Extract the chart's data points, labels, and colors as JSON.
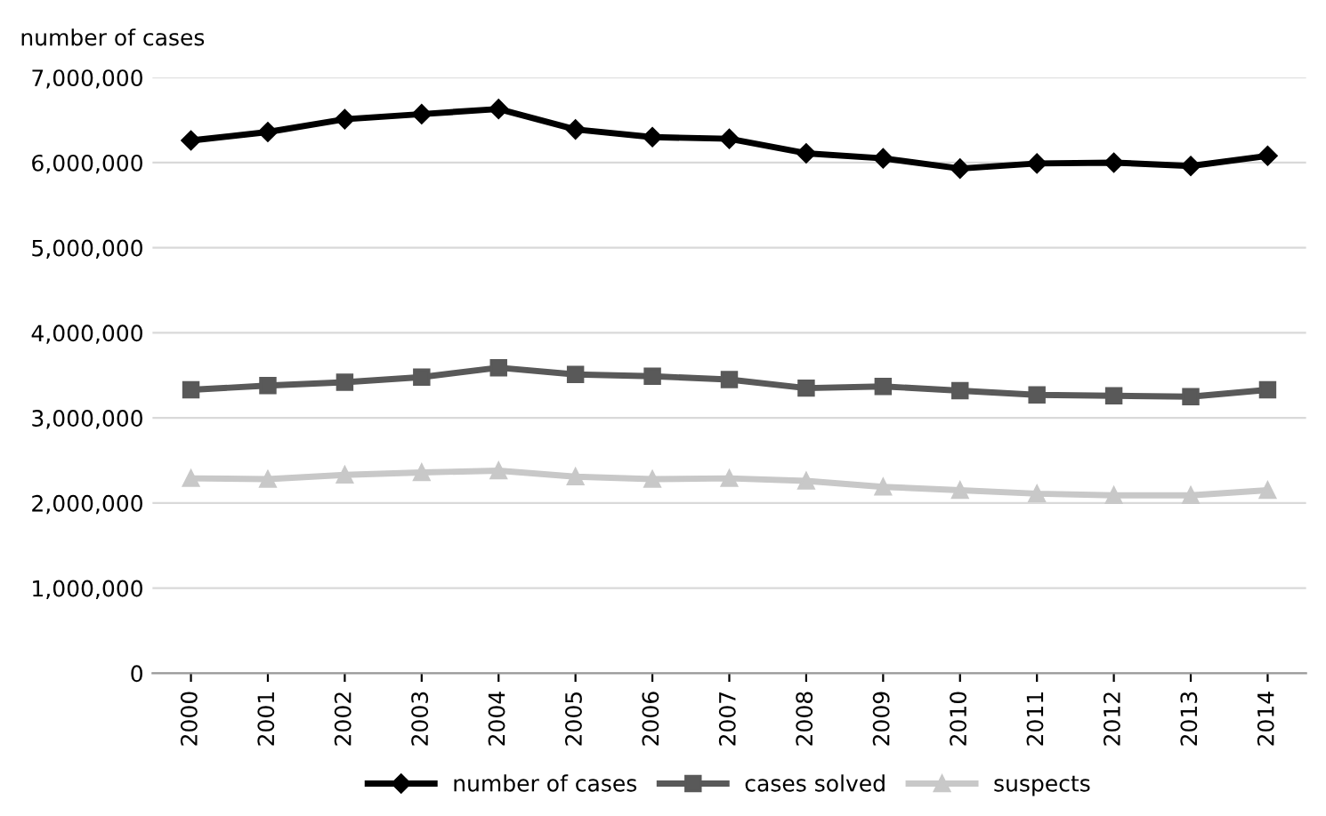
{
  "chart_data": {
    "type": "line",
    "ylabel": "number of cases",
    "categories": [
      "2000",
      "2001",
      "2002",
      "2003",
      "2004",
      "2005",
      "2006",
      "2007",
      "2008",
      "2009",
      "2010",
      "2011",
      "2012",
      "2013",
      "2014"
    ],
    "series": [
      {
        "name": "number of cases",
        "color": "#000000",
        "marker": "diamond",
        "values": [
          6260000,
          6360000,
          6510000,
          6570000,
          6630000,
          6390000,
          6300000,
          6280000,
          6110000,
          6050000,
          5930000,
          5990000,
          6000000,
          5960000,
          6080000
        ]
      },
      {
        "name": "cases solved",
        "color": "#595959",
        "marker": "square",
        "values": [
          3330000,
          3380000,
          3420000,
          3480000,
          3590000,
          3510000,
          3490000,
          3450000,
          3350000,
          3370000,
          3320000,
          3270000,
          3260000,
          3250000,
          3330000
        ]
      },
      {
        "name": "suspects",
        "color": "#c8c8c8",
        "marker": "triangle",
        "values": [
          2290000,
          2280000,
          2330000,
          2360000,
          2380000,
          2310000,
          2280000,
          2290000,
          2260000,
          2190000,
          2150000,
          2110000,
          2090000,
          2090000,
          2150000
        ]
      }
    ],
    "ylim": [
      0,
      7000000
    ],
    "yticks": [
      {
        "value": 0,
        "label": "0"
      },
      {
        "value": 1000000,
        "label": "1,000,000"
      },
      {
        "value": 2000000,
        "label": "2,000,000"
      },
      {
        "value": 3000000,
        "label": "3,000,000"
      },
      {
        "value": 4000000,
        "label": "4,000,000"
      },
      {
        "value": 5000000,
        "label": "5,000,000"
      },
      {
        "value": 6000000,
        "label": "6,000,000"
      },
      {
        "value": 7000000,
        "label": "7,000,000"
      }
    ],
    "grid": "y",
    "legend": "bottom",
    "line_style": "solid"
  }
}
